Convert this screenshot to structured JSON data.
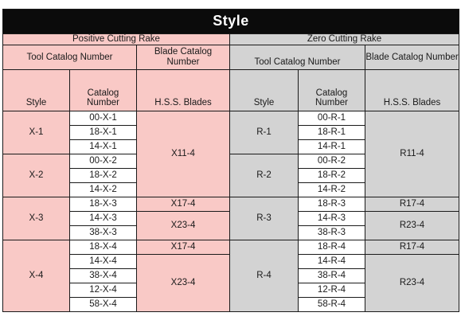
{
  "title": "Style",
  "sections": {
    "positive": "Positive  Cutting Rake",
    "zero": "Zero Cutting Rake"
  },
  "headers": {
    "tool_catalog": "Tool Catalog Number",
    "blade_catalog": "Blade Catalog Number",
    "style": "Style",
    "catalog_number": "Catalog Number",
    "hss_blades": "H.S.S. Blades"
  },
  "positive_rows": [
    {
      "style": "X-1",
      "catalog": "00-X-1",
      "blade": "X11-4"
    },
    {
      "catalog": "18-X-1"
    },
    {
      "catalog": "14-X-1"
    },
    {
      "style": "X-2",
      "catalog": "00-X-2"
    },
    {
      "catalog": "18-X-2"
    },
    {
      "catalog": "14-X-2"
    },
    {
      "style": "X-3",
      "catalog": "18-X-3",
      "blade": "X17-4"
    },
    {
      "catalog": "14-X-3",
      "blade": "X23-4"
    },
    {
      "catalog": "38-X-3"
    },
    {
      "style": "X-4",
      "catalog": "18-X-4",
      "blade": "X17-4"
    },
    {
      "catalog": "14-X-4",
      "blade": "X23-4"
    },
    {
      "catalog": "38-X-4"
    },
    {
      "catalog": "12-X-4"
    },
    {
      "catalog": "58-X-4"
    }
  ],
  "zero_rows": [
    {
      "style": "R-1",
      "catalog": "00-R-1",
      "blade": "R11-4"
    },
    {
      "catalog": "18-R-1"
    },
    {
      "catalog": "14-R-1"
    },
    {
      "style": "R-2",
      "catalog": "00-R-2"
    },
    {
      "catalog": "18-R-2"
    },
    {
      "catalog": "14-R-2"
    },
    {
      "style": "R-3",
      "catalog": "18-R-3",
      "blade": "R17-4"
    },
    {
      "catalog": "14-R-3",
      "blade": "R23-4"
    },
    {
      "catalog": "38-R-3"
    },
    {
      "style": "R-4",
      "catalog": "18-R-4",
      "blade": "R17-4"
    },
    {
      "catalog": "14-R-4",
      "blade": "R23-4"
    },
    {
      "catalog": "38-R-4"
    },
    {
      "catalog": "12-R-4"
    },
    {
      "catalog": "58-R-4"
    }
  ],
  "colors": {
    "title_bg": "#0b0b0b",
    "positive_bg": "#f9c9c6",
    "zero_bg": "#d3d3d3"
  }
}
